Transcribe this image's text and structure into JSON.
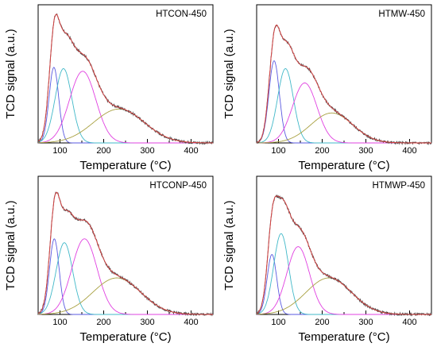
{
  "figure": {
    "panels_shared": {
      "xlabel": "Temperature (°C)",
      "ylabel": "TCD signal (a.u.)",
      "xticks": [
        100,
        200,
        300,
        400
      ],
      "xlim": [
        50,
        450
      ]
    }
  },
  "chart_data": [
    {
      "type": "line",
      "title": "HTCON-450",
      "xlabel": "Temperature (°C)",
      "ylabel": "TCD signal (a.u.)",
      "xlim": [
        50,
        450
      ],
      "ylim": [
        0,
        1.06
      ],
      "grid": false,
      "colors": {
        "measured": "#4b4b4b",
        "fit": "#e04040",
        "peak1": "#5a5ae0",
        "peak2": "#40b8c8",
        "peak3": "#e040e0",
        "peak4": "#a8a040"
      },
      "peaks": [
        {
          "center": 86,
          "amplitude": 0.58,
          "width": 11
        },
        {
          "center": 108,
          "amplitude": 0.57,
          "width": 19
        },
        {
          "center": 152,
          "amplitude": 0.55,
          "width": 30
        },
        {
          "center": 235,
          "amplitude": 0.26,
          "width": 58
        }
      ]
    },
    {
      "type": "line",
      "title": "HTMW-450",
      "xlabel": "Temperature (°C)",
      "ylabel": "TCD signal (a.u.)",
      "xlim": [
        50,
        450
      ],
      "ylim": [
        0,
        1.06
      ],
      "grid": false,
      "colors": {
        "measured": "#4b4b4b",
        "fit": "#e04040",
        "peak1": "#5a5ae0",
        "peak2": "#40b8c8",
        "peak3": "#e040e0",
        "peak4": "#a8a040"
      },
      "peaks": [
        {
          "center": 90,
          "amplitude": 0.63,
          "width": 12
        },
        {
          "center": 116,
          "amplitude": 0.57,
          "width": 18
        },
        {
          "center": 160,
          "amplitude": 0.46,
          "width": 28
        },
        {
          "center": 222,
          "amplitude": 0.23,
          "width": 48
        }
      ]
    },
    {
      "type": "line",
      "title": "HTCONP-450",
      "xlabel": "Temperature (°C)",
      "ylabel": "TCD signal (a.u.)",
      "xlim": [
        50,
        450
      ],
      "ylim": [
        0,
        1.06
      ],
      "grid": false,
      "colors": {
        "measured": "#4b4b4b",
        "fit": "#e04040",
        "peak1": "#5a5ae0",
        "peak2": "#40b8c8",
        "peak3": "#e040e0",
        "peak4": "#a8a040"
      },
      "peaks": [
        {
          "center": 87,
          "amplitude": 0.58,
          "width": 11
        },
        {
          "center": 110,
          "amplitude": 0.55,
          "width": 19
        },
        {
          "center": 156,
          "amplitude": 0.58,
          "width": 29
        },
        {
          "center": 230,
          "amplitude": 0.28,
          "width": 55
        }
      ]
    },
    {
      "type": "line",
      "title": "HTMWP-450",
      "xlabel": "Temperature (°C)",
      "ylabel": "TCD signal (a.u.)",
      "xlim": [
        50,
        450
      ],
      "ylim": [
        0,
        1.06
      ],
      "grid": false,
      "colors": {
        "measured": "#4b4b4b",
        "fit": "#e04040",
        "peak1": "#5a5ae0",
        "peak2": "#40b8c8",
        "peak3": "#e040e0",
        "peak4": "#a8a040"
      },
      "peaks": [
        {
          "center": 85,
          "amplitude": 0.46,
          "width": 11
        },
        {
          "center": 106,
          "amplitude": 0.62,
          "width": 17
        },
        {
          "center": 145,
          "amplitude": 0.52,
          "width": 26
        },
        {
          "center": 215,
          "amplitude": 0.28,
          "width": 52
        }
      ]
    }
  ]
}
